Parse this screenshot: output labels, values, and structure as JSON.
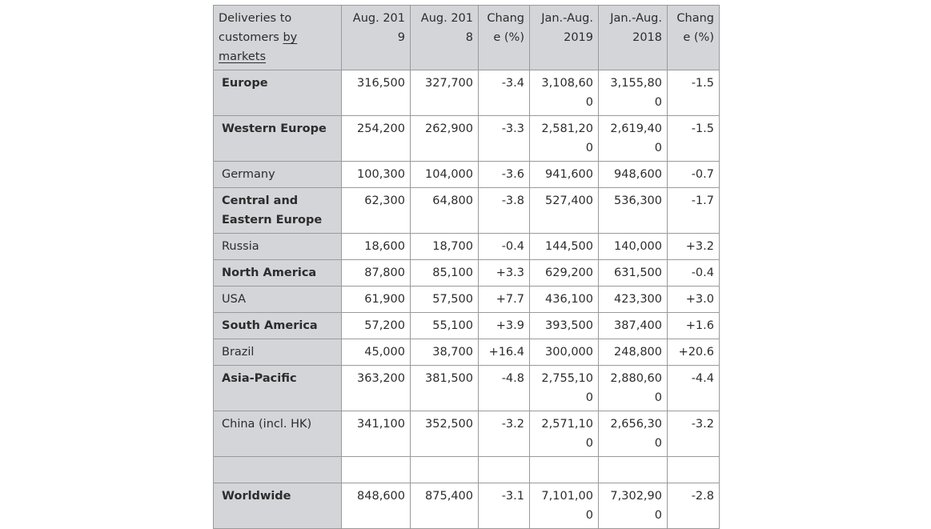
{
  "header": {
    "label_parts": [
      "Deliveries to customers ",
      "by",
      " markets"
    ],
    "columns": [
      "Aug. 2019",
      "Aug. 2018",
      "Change (%)",
      "Jan.-Aug. 2019",
      "Jan.-Aug. 2018",
      "Change (%)"
    ]
  },
  "rows": [
    {
      "label": "Europe",
      "bold": true,
      "values": [
        "316,500",
        "327,700",
        "-3.4",
        "3,108,600",
        "3,155,800",
        "-1.5"
      ]
    },
    {
      "label": "Western Europe",
      "bold": true,
      "values": [
        "254,200",
        "262,900",
        "-3.3",
        "2,581,200",
        "2,619,400",
        "-1.5"
      ]
    },
    {
      "label": "Germany",
      "bold": false,
      "values": [
        "100,300",
        "104,000",
        "-3.6",
        "941,600",
        "948,600",
        "-0.7"
      ]
    },
    {
      "label": "Central and Eastern Europe",
      "bold": true,
      "values": [
        "62,300",
        "64,800",
        "-3.8",
        "527,400",
        "536,300",
        "-1.7"
      ]
    },
    {
      "label": "Russia",
      "bold": false,
      "values": [
        "18,600",
        "18,700",
        "-0.4",
        "144,500",
        "140,000",
        "+3.2"
      ]
    },
    {
      "label": "North America",
      "bold": true,
      "values": [
        "87,800",
        "85,100",
        "+3.3",
        "629,200",
        "631,500",
        "-0.4"
      ]
    },
    {
      "label": "USA",
      "bold": false,
      "values": [
        "61,900",
        "57,500",
        "+7.7",
        "436,100",
        "423,300",
        "+3.0"
      ]
    },
    {
      "label": "South America",
      "bold": true,
      "values": [
        "57,200",
        "55,100",
        "+3.9",
        "393,500",
        "387,400",
        "+1.6"
      ]
    },
    {
      "label": "Brazil",
      "bold": false,
      "values": [
        "45,000",
        "38,700",
        "+16.4",
        "300,000",
        "248,800",
        "+20.6"
      ]
    },
    {
      "label": "Asia-Pacific",
      "bold": true,
      "values": [
        "363,200",
        "381,500",
        "-4.8",
        "2,755,100",
        "2,880,600",
        "-4.4"
      ]
    },
    {
      "label": "China (incl. HK)",
      "bold": false,
      "values": [
        "341,100",
        "352,500",
        "-3.2",
        "2,571,100",
        "2,656,300",
        "-3.2"
      ]
    },
    {
      "label": "",
      "bold": false,
      "empty": true,
      "values": [
        "",
        "",
        "",
        "",
        "",
        ""
      ]
    },
    {
      "label": "Worldwide",
      "bold": true,
      "values": [
        "848,600",
        "875,400",
        "-3.1",
        "7,101,000",
        "7,302,900",
        "-2.8"
      ]
    }
  ]
}
